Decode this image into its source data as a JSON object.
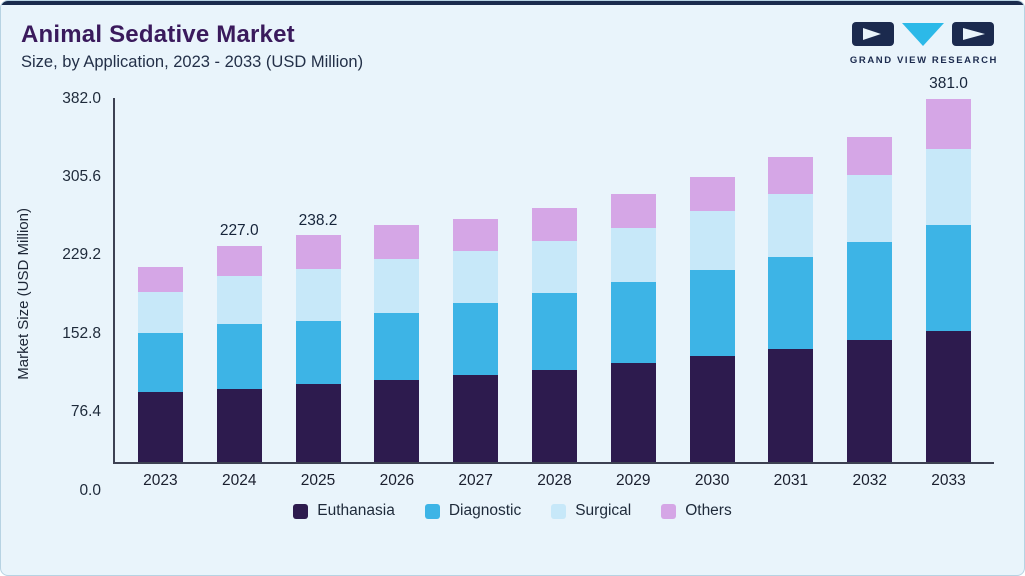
{
  "header": {
    "title": "Animal Sedative Market",
    "subtitle": "Size, by Application, 2023 - 2033 (USD Million)",
    "logo_text": "GRAND VIEW RESEARCH"
  },
  "chart_data": {
    "type": "bar",
    "stacked": true,
    "title": "Animal Sedative Market Size, by Application, 2023 - 2033 (USD Million)",
    "xlabel": "",
    "ylabel": "Market Size (USD Million)",
    "ylim": [
      0,
      382
    ],
    "yticks": [
      "0.0",
      "76.4",
      "152.8",
      "229.2",
      "305.6",
      "382.0"
    ],
    "grid": false,
    "legend_position": "bottom",
    "categories": [
      "2023",
      "2024",
      "2025",
      "2026",
      "2027",
      "2028",
      "2029",
      "2030",
      "2031",
      "2032",
      "2033"
    ],
    "series": [
      {
        "name": "Euthanasia",
        "color": "#2d1b4e",
        "values": [
          73.5,
          77.0,
          82.0,
          86.5,
          91.5,
          97.0,
          103.5,
          111.0,
          119.0,
          128.0,
          138.0
        ]
      },
      {
        "name": "Diagnostic",
        "color": "#3db4e6",
        "values": [
          61.5,
          68.0,
          66.0,
          70.0,
          75.0,
          80.0,
          85.0,
          91.0,
          96.5,
          103.0,
          111.0
        ]
      },
      {
        "name": "Surgical",
        "color": "#c7e8f9",
        "values": [
          43.0,
          50.0,
          55.0,
          56.5,
          54.5,
          55.0,
          57.0,
          61.0,
          65.5,
          70.0,
          80.0
        ]
      },
      {
        "name": "Others",
        "color": "#d5a6e6",
        "values": [
          27.0,
          32.0,
          35.2,
          35.5,
          34.0,
          34.5,
          35.5,
          36.5,
          39.5,
          40.0,
          52.0
        ]
      }
    ],
    "bar_labels": {
      "2024": "227.0",
      "2025": "238.2",
      "2033": "381.0"
    }
  }
}
